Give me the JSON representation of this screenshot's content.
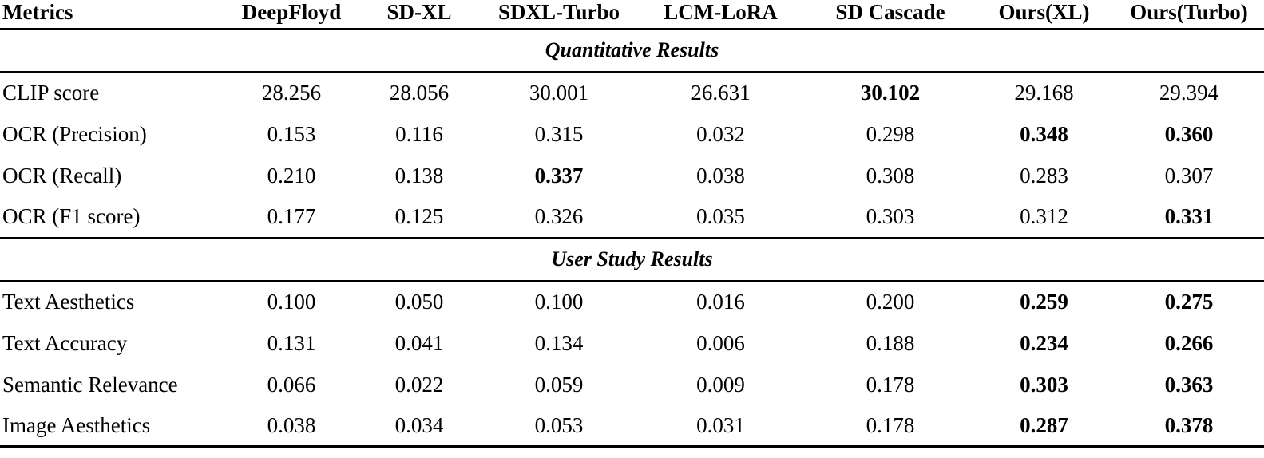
{
  "page": {
    "background": "#ffffff",
    "text_color": "#000000",
    "rule_color": "#000000"
  },
  "table": {
    "columns": [
      {
        "label": "Metrics"
      },
      {
        "label": "DeepFloyd"
      },
      {
        "label": "SD-XL"
      },
      {
        "label": "SDXL-Turbo"
      },
      {
        "label": "LCM-LoRA"
      },
      {
        "label": "SD Cascade"
      },
      {
        "label": "Ours(XL)"
      },
      {
        "label": "Ours(Turbo)"
      }
    ],
    "sections": [
      {
        "title": "Quantitative Results",
        "rows": [
          {
            "metric": "CLIP score",
            "values": [
              "28.256",
              "28.056",
              "30.001",
              "26.631",
              "30.102",
              "29.168",
              "29.394"
            ],
            "bold": [
              false,
              false,
              false,
              false,
              true,
              false,
              false
            ]
          },
          {
            "metric": "OCR (Precision)",
            "values": [
              "0.153",
              "0.116",
              "0.315",
              "0.032",
              "0.298",
              "0.348",
              "0.360"
            ],
            "bold": [
              false,
              false,
              false,
              false,
              false,
              true,
              true
            ]
          },
          {
            "metric": "OCR (Recall)",
            "values": [
              "0.210",
              "0.138",
              "0.337",
              "0.038",
              "0.308",
              "0.283",
              "0.307"
            ],
            "bold": [
              false,
              false,
              true,
              false,
              false,
              false,
              false
            ]
          },
          {
            "metric": "OCR (F1 score)",
            "values": [
              "0.177",
              "0.125",
              "0.326",
              "0.035",
              "0.303",
              "0.312",
              "0.331"
            ],
            "bold": [
              false,
              false,
              false,
              false,
              false,
              false,
              true
            ]
          }
        ]
      },
      {
        "title": "User Study Results",
        "rows": [
          {
            "metric": "Text Aesthetics",
            "values": [
              "0.100",
              "0.050",
              "0.100",
              "0.016",
              "0.200",
              "0.259",
              "0.275"
            ],
            "bold": [
              false,
              false,
              false,
              false,
              false,
              true,
              true
            ]
          },
          {
            "metric": "Text Accuracy",
            "values": [
              "0.131",
              "0.041",
              "0.134",
              "0.006",
              "0.188",
              "0.234",
              "0.266"
            ],
            "bold": [
              false,
              false,
              false,
              false,
              false,
              true,
              true
            ]
          },
          {
            "metric": "Semantic Relevance",
            "values": [
              "0.066",
              "0.022",
              "0.059",
              "0.009",
              "0.178",
              "0.303",
              "0.363"
            ],
            "bold": [
              false,
              false,
              false,
              false,
              false,
              true,
              true
            ]
          },
          {
            "metric": "Image Aesthetics",
            "values": [
              "0.038",
              "0.034",
              "0.053",
              "0.031",
              "0.178",
              "0.287",
              "0.378"
            ],
            "bold": [
              false,
              false,
              false,
              false,
              false,
              true,
              true
            ]
          }
        ]
      }
    ]
  }
}
